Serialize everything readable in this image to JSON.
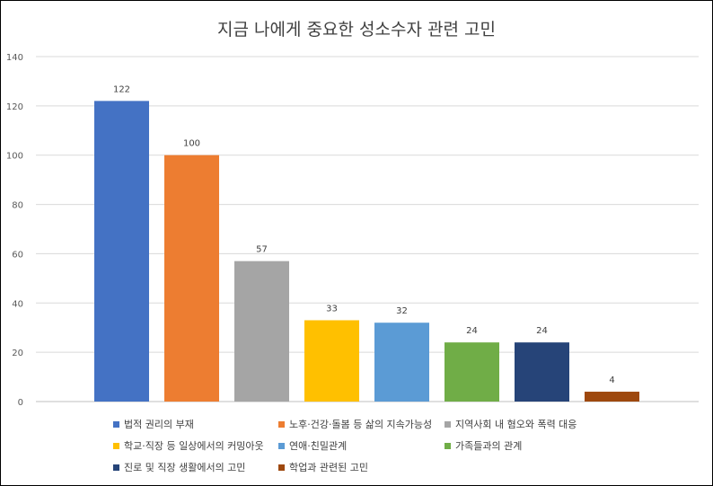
{
  "chart_data": {
    "type": "bar",
    "title": "지금 나에게 중요한 성소수자 관련 고민",
    "ylim": [
      0,
      140
    ],
    "yticks": [
      0,
      20,
      40,
      60,
      80,
      100,
      120,
      140
    ],
    "grid": true,
    "legend_position": "bottom",
    "categories": [
      "법적 권리의 부재",
      "노후·건강·돌봄 등 삶의 지속가능성",
      "지역사회 내 혐오와 폭력 대응",
      "학교·직장 등 일상에서의 커밍아웃",
      "연애·친밀관계",
      "가족들과의 관계",
      "진로 및 직장 생활에서의 고민",
      "학업과 관련된 고민"
    ],
    "values": [
      122,
      100,
      57,
      33,
      32,
      24,
      24,
      4
    ],
    "colors": [
      "#4472C4",
      "#ED7D31",
      "#A5A5A5",
      "#FFC000",
      "#5B9BD5",
      "#70AD47",
      "#264478",
      "#9E480E"
    ]
  }
}
